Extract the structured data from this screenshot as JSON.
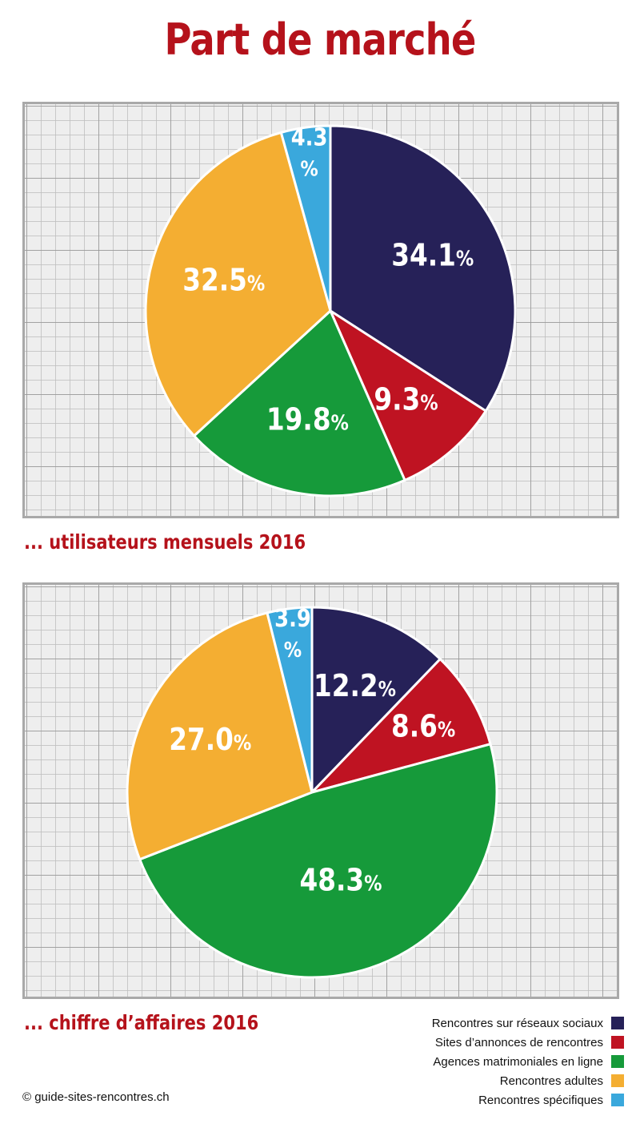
{
  "title": "Part de marché",
  "colors": {
    "title": "#b5121b",
    "caption": "#b5121b",
    "pie_border": "#ffffff",
    "label_text": "#ffffff"
  },
  "categories": [
    {
      "name": "Rencontres sur réseaux sociaux",
      "color": "#262158"
    },
    {
      "name": "Sites d’annonces de rencontres",
      "color": "#bf1322"
    },
    {
      "name": "Agences matrimoniales en ligne",
      "color": "#169a3a"
    },
    {
      "name": "Rencontres adultes",
      "color": "#f4ae32"
    },
    {
      "name": "Rencontres spécifiques",
      "color": "#3aa8dc"
    }
  ],
  "chart_data": [
    {
      "type": "pie",
      "caption": "... utilisateurs mensuels 2016",
      "slices": [
        {
          "category": "Rencontres sur réseaux sociaux",
          "value": 34.1,
          "label": "34.1",
          "unit": "%"
        },
        {
          "category": "Sites d’annonces de rencontres",
          "value": 9.3,
          "label": "9.3",
          "unit": "%"
        },
        {
          "category": "Agences matrimoniales en ligne",
          "value": 19.8,
          "label": "19.8",
          "unit": "%"
        },
        {
          "category": "Rencontres adultes",
          "value": 32.5,
          "label": "32.5",
          "unit": "%"
        },
        {
          "category": "Rencontres spécifiques",
          "value": 4.3,
          "label": "4.3",
          "unit": "%"
        }
      ]
    },
    {
      "type": "pie",
      "caption": "... chiffre d’affaires 2016",
      "slices": [
        {
          "category": "Rencontres sur réseaux sociaux",
          "value": 12.2,
          "label": "12.2",
          "unit": "%"
        },
        {
          "category": "Sites d’annonces de rencontres",
          "value": 8.6,
          "label": "8.6",
          "unit": "%"
        },
        {
          "category": "Agences matrimoniales en ligne",
          "value": 48.3,
          "label": "48.3",
          "unit": "%"
        },
        {
          "category": "Rencontres adultes",
          "value": 27.0,
          "label": "27.0",
          "unit": "%"
        },
        {
          "category": "Rencontres spécifiques",
          "value": 3.9,
          "label": "3.9",
          "unit": "%"
        }
      ]
    }
  ],
  "copyright": "© guide-sites-rencontres.ch"
}
